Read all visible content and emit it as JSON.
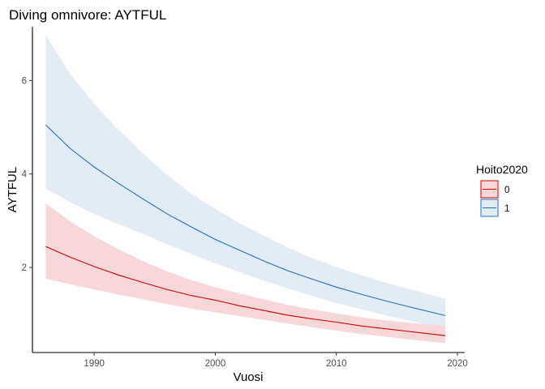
{
  "chart_data": {
    "type": "line",
    "title": "Diving omnivore: AYTFUL",
    "xlabel": "Vuosi",
    "ylabel": "AYTFUL",
    "xlim": [
      1984.9,
      2020.6
    ],
    "ylim": [
      0.18,
      7.15
    ],
    "x_ticks": [
      1990,
      2000,
      2010,
      2020
    ],
    "y_ticks": [
      2,
      4,
      6
    ],
    "grid": false,
    "legend": {
      "title": "Hoito2020",
      "position": "right"
    },
    "series": [
      {
        "name": "0",
        "color": "#cc0000",
        "fill": "#f8d7d9",
        "points": [
          {
            "x": 1986,
            "y": 2.45,
            "lo": 1.76,
            "hi": 3.37
          },
          {
            "x": 1988,
            "y": 2.22,
            "lo": 1.64,
            "hi": 2.99
          },
          {
            "x": 1990,
            "y": 2.02,
            "lo": 1.53,
            "hi": 2.67
          },
          {
            "x": 1992,
            "y": 1.84,
            "lo": 1.42,
            "hi": 2.39
          },
          {
            "x": 1994,
            "y": 1.68,
            "lo": 1.32,
            "hi": 2.14
          },
          {
            "x": 1996,
            "y": 1.53,
            "lo": 1.22,
            "hi": 1.92
          },
          {
            "x": 1998,
            "y": 1.4,
            "lo": 1.12,
            "hi": 1.73
          },
          {
            "x": 2000,
            "y": 1.3,
            "lo": 1.04,
            "hi": 1.58
          },
          {
            "x": 2002,
            "y": 1.18,
            "lo": 0.96,
            "hi": 1.44
          },
          {
            "x": 2004,
            "y": 1.08,
            "lo": 0.88,
            "hi": 1.32
          },
          {
            "x": 2006,
            "y": 0.98,
            "lo": 0.8,
            "hi": 1.2
          },
          {
            "x": 2008,
            "y": 0.9,
            "lo": 0.72,
            "hi": 1.1
          },
          {
            "x": 2010,
            "y": 0.83,
            "lo": 0.65,
            "hi": 1.02
          },
          {
            "x": 2012,
            "y": 0.75,
            "lo": 0.58,
            "hi": 0.94
          },
          {
            "x": 2014,
            "y": 0.69,
            "lo": 0.52,
            "hi": 0.87
          },
          {
            "x": 2016,
            "y": 0.63,
            "lo": 0.46,
            "hi": 0.82
          },
          {
            "x": 2019,
            "y": 0.54,
            "lo": 0.38,
            "hi": 0.75
          }
        ]
      },
      {
        "name": "1",
        "color": "#1f6fc4",
        "fill": "#e1ecf6",
        "points": [
          {
            "x": 1986,
            "y": 5.05,
            "lo": 3.69,
            "hi": 6.97
          },
          {
            "x": 1988,
            "y": 4.55,
            "lo": 3.4,
            "hi": 6.15
          },
          {
            "x": 1990,
            "y": 4.15,
            "lo": 3.15,
            "hi": 5.5
          },
          {
            "x": 1992,
            "y": 3.8,
            "lo": 2.93,
            "hi": 4.95
          },
          {
            "x": 1994,
            "y": 3.47,
            "lo": 2.72,
            "hi": 4.45
          },
          {
            "x": 1996,
            "y": 3.15,
            "lo": 2.5,
            "hi": 3.98
          },
          {
            "x": 1998,
            "y": 2.87,
            "lo": 2.29,
            "hi": 3.58
          },
          {
            "x": 2000,
            "y": 2.6,
            "lo": 2.09,
            "hi": 3.25
          },
          {
            "x": 2002,
            "y": 2.37,
            "lo": 1.9,
            "hi": 2.95
          },
          {
            "x": 2004,
            "y": 2.14,
            "lo": 1.72,
            "hi": 2.68
          },
          {
            "x": 2006,
            "y": 1.93,
            "lo": 1.55,
            "hi": 2.42
          },
          {
            "x": 2008,
            "y": 1.75,
            "lo": 1.39,
            "hi": 2.2
          },
          {
            "x": 2010,
            "y": 1.58,
            "lo": 1.24,
            "hi": 2.01
          },
          {
            "x": 2012,
            "y": 1.43,
            "lo": 1.11,
            "hi": 1.84
          },
          {
            "x": 2014,
            "y": 1.29,
            "lo": 0.98,
            "hi": 1.68
          },
          {
            "x": 2016,
            "y": 1.16,
            "lo": 0.86,
            "hi": 1.54
          },
          {
            "x": 2019,
            "y": 0.97,
            "lo": 0.7,
            "hi": 1.33
          }
        ]
      }
    ]
  }
}
